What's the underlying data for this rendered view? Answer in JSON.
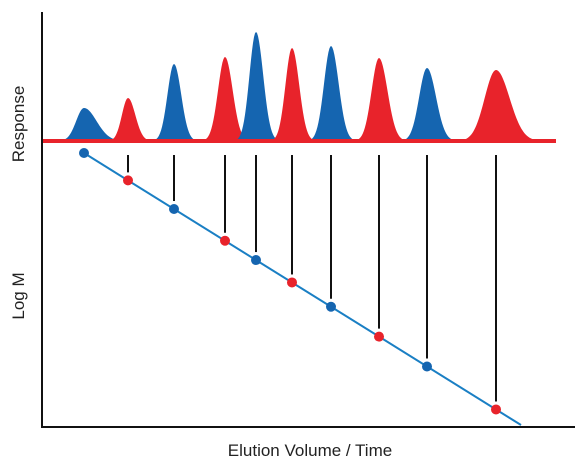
{
  "xlabel": "Elution Volume / Time",
  "ylabel_top": "Response",
  "ylabel_bottom": "Log M",
  "colors": {
    "blue": "#1565b0",
    "red": "#e8232b",
    "line": "#1a7fc4",
    "axis": "#111111",
    "guide": "#111111"
  }
}
